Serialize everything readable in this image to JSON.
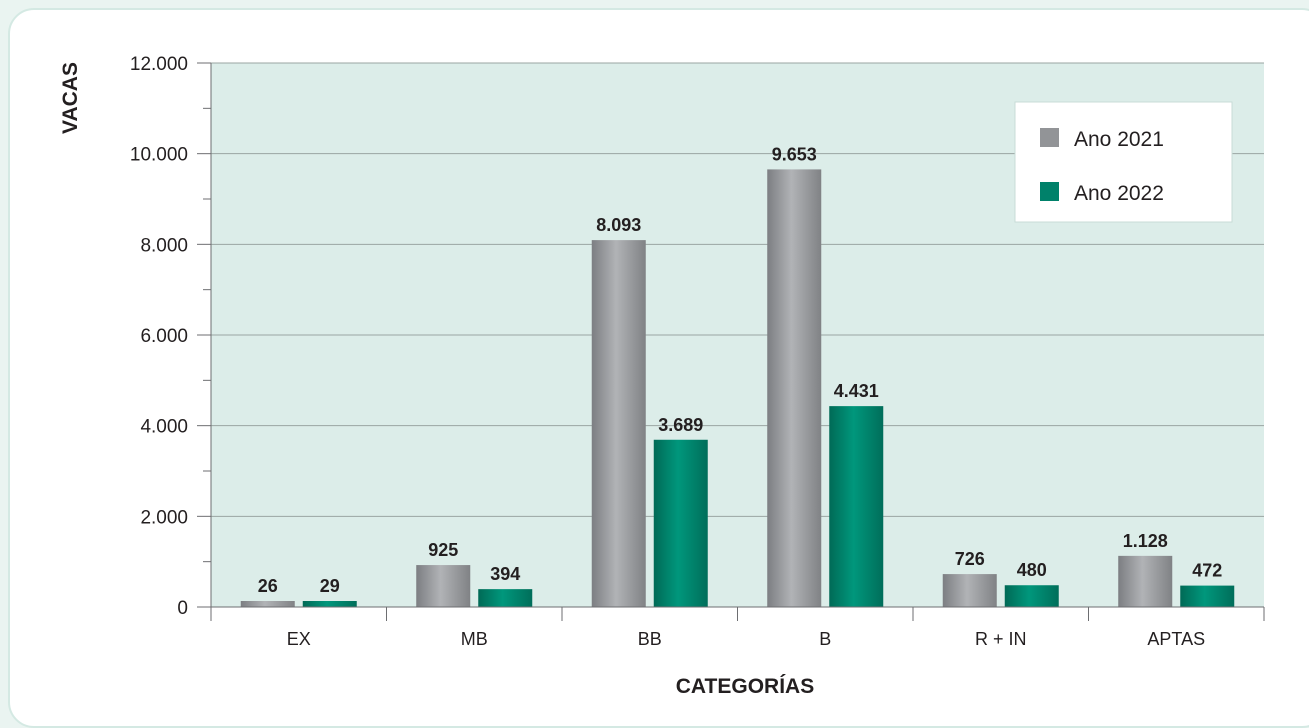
{
  "chart_data": {
    "type": "bar",
    "ylabel": "VACAS",
    "xlabel": "CATEGORÍAS",
    "categories": [
      "EX",
      "MB",
      "BB",
      "B",
      "R + IN",
      "APTAS"
    ],
    "series": [
      {
        "name": "Ano 2021",
        "values": [
          26,
          925,
          8093,
          9653,
          726,
          1128
        ],
        "labels": [
          "26",
          "925",
          "8.093",
          "9.653",
          "726",
          "1.128"
        ],
        "color": "#929497"
      },
      {
        "name": "Ano 2022",
        "values": [
          29,
          394,
          3689,
          4431,
          480,
          472
        ],
        "labels": [
          "29",
          "394",
          "3.689",
          "4.431",
          "480",
          "472"
        ],
        "color": "#00816a"
      }
    ],
    "ylim": [
      0,
      12000
    ],
    "yticks": [
      0,
      2000,
      4000,
      6000,
      8000,
      10000,
      12000
    ],
    "ytick_labels": [
      "0",
      "2.000",
      "4.000",
      "6.000",
      "8.000",
      "10.000",
      "12.000"
    ],
    "grid": true,
    "legend_position": "top-right",
    "plot_background": "#dcede9"
  }
}
